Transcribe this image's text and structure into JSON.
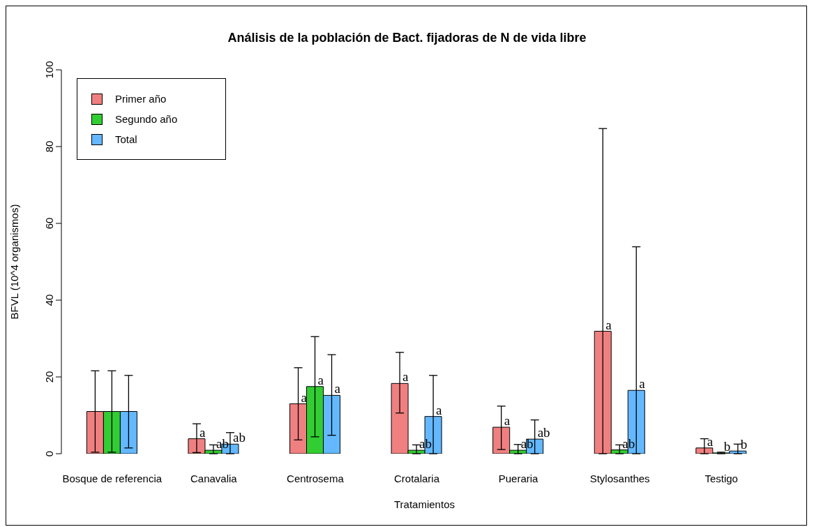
{
  "chart_data": {
    "type": "bar",
    "title": "Análisis de la población de Bact. fijadoras de N de vida libre",
    "xlabel": "Tratamientos",
    "ylabel": "BFVL (10^4 organismos)",
    "categories": [
      "Bosque de referencia",
      "Canavalia",
      "Centrosema",
      "Crotalaria",
      "Pueraria",
      "Stylosanthes",
      "Testigo"
    ],
    "series": [
      {
        "name": "Primer año",
        "color": "#f08080",
        "values": [
          11,
          3.9,
          13,
          18.3,
          6.9,
          31.9,
          1.5
        ],
        "errors": [
          [
            0.4,
            21.6
          ],
          [
            0.3,
            7.8
          ],
          [
            3.6,
            22.4
          ],
          [
            10.6,
            26.4
          ],
          [
            1.1,
            12.4
          ],
          [
            0,
            84.7
          ],
          [
            0,
            3.9
          ]
        ],
        "value_labels": [
          null,
          "a",
          "a",
          "a",
          "a",
          "a",
          "a"
        ]
      },
      {
        "name": "Segundo año",
        "color": "#32cd32",
        "values": [
          11,
          0.9,
          17.5,
          0.9,
          0.9,
          1,
          0.2
        ],
        "errors": [
          [
            0.4,
            21.6
          ],
          [
            0,
            2.3
          ],
          [
            4.4,
            30.5
          ],
          [
            0,
            2.3
          ],
          [
            0,
            2.4
          ],
          [
            0,
            2.3
          ],
          [
            0,
            0.4
          ]
        ],
        "value_labels": [
          null,
          "ab",
          "a",
          "ab",
          "ab",
          "ab",
          "b"
        ]
      },
      {
        "name": "Total",
        "color": "#63b8ff",
        "values": [
          11,
          2.5,
          15.2,
          9.7,
          3.8,
          16.5,
          0.7
        ],
        "errors": [
          [
            1.5,
            20.4
          ],
          [
            0,
            5.5
          ],
          [
            4.8,
            25.8
          ],
          [
            0,
            20.4
          ],
          [
            0,
            8.8
          ],
          [
            0,
            53.9
          ],
          [
            0,
            2.5
          ]
        ],
        "value_labels": [
          null,
          "ab",
          "a",
          "a",
          "ab",
          "a",
          "b"
        ]
      }
    ],
    "ylim": [
      0,
      100
    ],
    "yticks": [
      0,
      20,
      40,
      60,
      80,
      100
    ],
    "grid": false,
    "legend": "top left"
  }
}
